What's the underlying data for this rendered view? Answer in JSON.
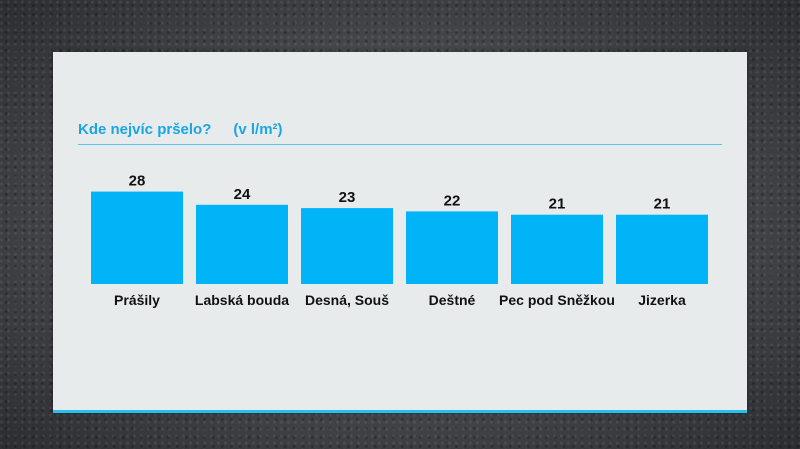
{
  "chart_data": {
    "type": "bar",
    "title": "Kde nejvíc pršelo?",
    "unit": "(v l/m²)",
    "categories": [
      "Prášily",
      "Labská bouda",
      "Desná, Souš",
      "Deštné",
      "Pec pod Sněžkou",
      "Jizerka"
    ],
    "values": [
      28,
      24,
      23,
      22,
      21,
      21
    ],
    "xlabel": "",
    "ylabel": "",
    "ylim": [
      0,
      30
    ],
    "grid": false,
    "bar_color": "#00b4f7",
    "title_color": "#1aa6e3"
  }
}
